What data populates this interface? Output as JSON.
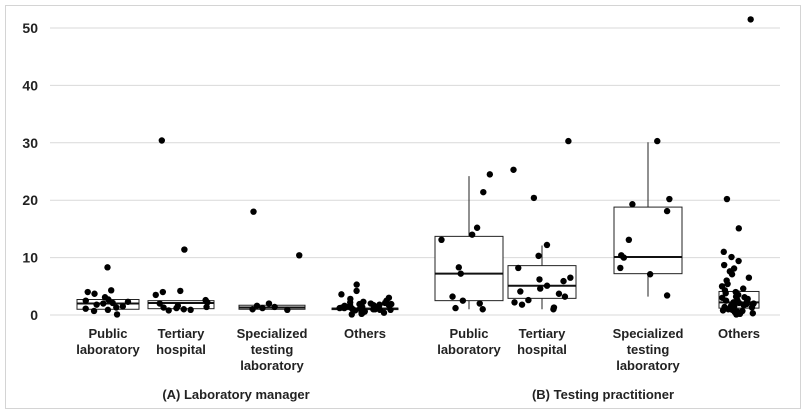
{
  "chart_data": {
    "type": "box",
    "ylim": [
      0,
      50
    ],
    "yticks": [
      0,
      10,
      20,
      30,
      40,
      50
    ],
    "grid": "horizontal",
    "groups": [
      {
        "label": "(A) Laboratory manager"
      },
      {
        "label": "(B) Testing practitioner"
      }
    ],
    "categories": [
      {
        "group": 0,
        "label_lines": [
          "Public",
          "laboratory"
        ],
        "box": {
          "whisker_low": 0.5,
          "q1": 1.0,
          "median": 2.0,
          "q3": 2.7,
          "whisker_high": 2.8
        },
        "points": [
          8.3,
          4.3,
          4.0,
          3.7,
          3.1,
          2.7,
          2.5,
          2.3,
          2.1,
          2.0,
          1.8,
          1.5,
          1.3,
          1.1,
          0.9,
          0.7,
          0.1
        ]
      },
      {
        "group": 0,
        "label_lines": [
          "Tertiary",
          "hospital"
        ],
        "box": {
          "whisker_low": 0.8,
          "q1": 1.1,
          "median": 2.1,
          "q3": 2.5,
          "whisker_high": 2.6
        },
        "points": [
          30.4,
          11.4,
          4.2,
          4.0,
          3.5,
          2.6,
          2.2,
          2.0,
          1.6,
          1.4,
          1.3,
          1.2,
          1.0,
          0.9,
          0.8
        ]
      },
      {
        "group": 0,
        "label_lines": [
          "Specialized",
          "testing",
          "laboratory"
        ],
        "box": {
          "whisker_low": 0.9,
          "q1": 1.0,
          "median": 1.3,
          "q3": 1.7,
          "whisker_high": 1.8
        },
        "points": [
          18.0,
          10.4,
          2.0,
          1.6,
          1.4,
          1.2,
          1.0,
          0.9
        ]
      },
      {
        "group": 0,
        "label_lines": [
          "Others"
        ],
        "box": {
          "whisker_low": 0.8,
          "q1": 1.0,
          "median": 1.1,
          "q3": 1.2,
          "whisker_high": 1.3
        },
        "points": [
          5.3,
          4.2,
          3.6,
          3.0,
          2.8,
          2.5,
          2.3,
          2.2,
          2.0,
          1.9,
          1.8,
          1.7,
          1.6,
          1.5,
          1.4,
          1.3,
          1.2,
          1.1,
          1.0,
          1.0,
          0.9,
          0.8,
          0.7,
          0.6,
          0.5,
          0.4,
          0.3,
          0.2,
          0.1,
          1.6,
          1.4,
          1.2,
          1.1,
          0.9,
          2.1,
          1.9,
          1.7
        ]
      },
      {
        "group": 1,
        "label_lines": [
          "Public",
          "laboratory"
        ],
        "box": {
          "whisker_low": 1.0,
          "q1": 2.5,
          "median": 7.2,
          "q3": 13.7,
          "whisker_high": 24.2
        },
        "points": [
          24.5,
          21.4,
          15.2,
          14.0,
          13.1,
          8.3,
          7.2,
          3.2,
          2.5,
          2.0,
          1.0,
          1.2
        ]
      },
      {
        "group": 1,
        "label_lines": [
          "Tertiary",
          "hospital"
        ],
        "box": {
          "whisker_low": 1.0,
          "q1": 2.9,
          "median": 5.1,
          "q3": 8.6,
          "whisker_high": 12.1
        },
        "points": [
          30.3,
          25.3,
          20.4,
          12.2,
          10.3,
          8.2,
          6.5,
          6.2,
          5.9,
          5.1,
          4.6,
          4.1,
          3.7,
          3.2,
          2.6,
          2.2,
          1.8,
          1.3,
          1.0
        ]
      },
      {
        "group": 1,
        "label_lines": [
          "Specialized",
          "testing",
          "laboratory"
        ],
        "box": {
          "whisker_low": 3.2,
          "q1": 7.2,
          "median": 10.1,
          "q3": 18.8,
          "whisker_high": 30.1
        },
        "points": [
          30.3,
          20.2,
          19.3,
          18.1,
          13.1,
          10.4,
          10.0,
          8.2,
          7.1,
          3.4
        ]
      },
      {
        "group": 1,
        "label_lines": [
          "Others"
        ],
        "box": {
          "whisker_low": 0.1,
          "q1": 1.2,
          "median": 2.2,
          "q3": 4.1,
          "whisker_high": 4.3
        },
        "points": [
          51.5,
          20.2,
          15.1,
          11.0,
          10.1,
          9.4,
          8.7,
          8.1,
          7.6,
          7.1,
          6.5,
          6.0,
          5.4,
          5.0,
          4.6,
          4.3,
          4.0,
          3.8,
          3.5,
          3.2,
          3.0,
          2.8,
          2.6,
          2.4,
          2.2,
          2.0,
          1.9,
          1.7,
          1.6,
          1.5,
          1.4,
          1.3,
          1.2,
          1.1,
          1.0,
          0.9,
          0.8,
          0.7,
          0.6,
          0.5,
          0.4,
          0.3,
          0.2,
          0.1,
          2.5,
          1.8,
          3.1,
          2.1
        ]
      }
    ]
  }
}
